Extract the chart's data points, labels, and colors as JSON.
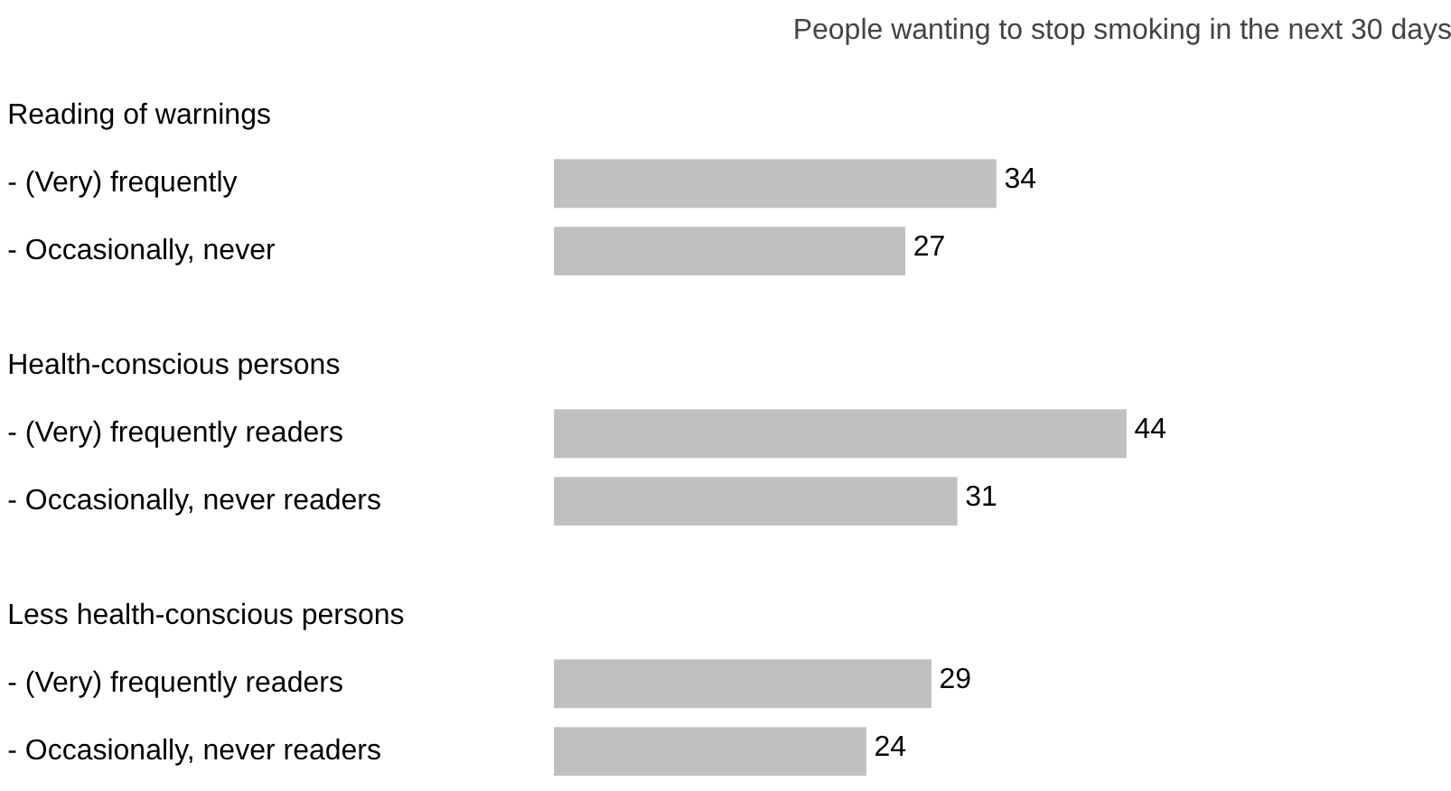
{
  "chart_data": {
    "type": "bar",
    "orientation": "horizontal",
    "title": "People wanting to stop smoking in the next 30 days",
    "categories": [
      "Reading of warnings",
      "- (Very) frequently",
      "- Occasionally, never",
      "Health-conscious persons",
      "- (Very) frequently readers",
      "- Occasionally, never readers",
      "Less health-conscious persons",
      "- (Very) frequently readers",
      "- Occasionally, never readers"
    ],
    "values": [
      null,
      34,
      27,
      null,
      44,
      31,
      null,
      29,
      24
    ],
    "color": "#c0c0c0",
    "data_labels": true
  }
}
